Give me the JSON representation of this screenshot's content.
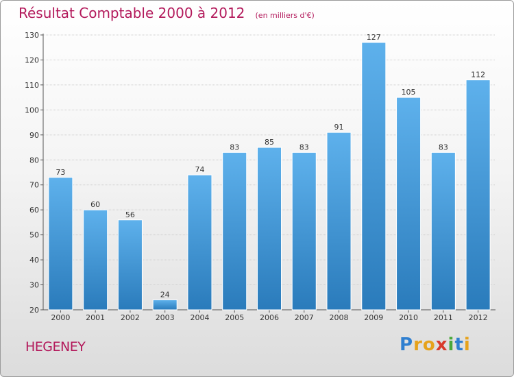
{
  "chart_data": {
    "type": "bar",
    "title": "Résultat Comptable 2000 à 2012",
    "subtitle": "(en milliers d'€)",
    "categories": [
      "2000",
      "2001",
      "2002",
      "2003",
      "2004",
      "2005",
      "2006",
      "2007",
      "2008",
      "2009",
      "2010",
      "2011",
      "2012"
    ],
    "values": [
      73,
      60,
      56,
      24,
      74,
      83,
      85,
      83,
      91,
      127,
      105,
      83,
      112
    ],
    "xlabel": "",
    "ylabel": "",
    "ylim": [
      20,
      130
    ],
    "yticks": [
      20,
      30,
      40,
      50,
      60,
      70,
      80,
      90,
      100,
      110,
      120,
      130
    ],
    "grid": true,
    "bar_color_top": "#5eb1ec",
    "bar_color_bottom": "#2a7bbb"
  },
  "commune": "HEGENEY",
  "logo": {
    "letters": [
      {
        "ch": "P",
        "color": "#2f7fd0"
      },
      {
        "ch": "r",
        "color": "#e6a21b"
      },
      {
        "ch": "o",
        "color": "#e6a21b"
      },
      {
        "ch": "x",
        "color": "#d93a2b"
      },
      {
        "ch": "i",
        "color": "#4aa83a"
      },
      {
        "ch": "t",
        "color": "#2f7fd0"
      },
      {
        "ch": "i",
        "color": "#e6a21b"
      }
    ]
  },
  "colors": {
    "title": "#b3195b",
    "text": "#333333",
    "grid": "#cfcfcf"
  }
}
